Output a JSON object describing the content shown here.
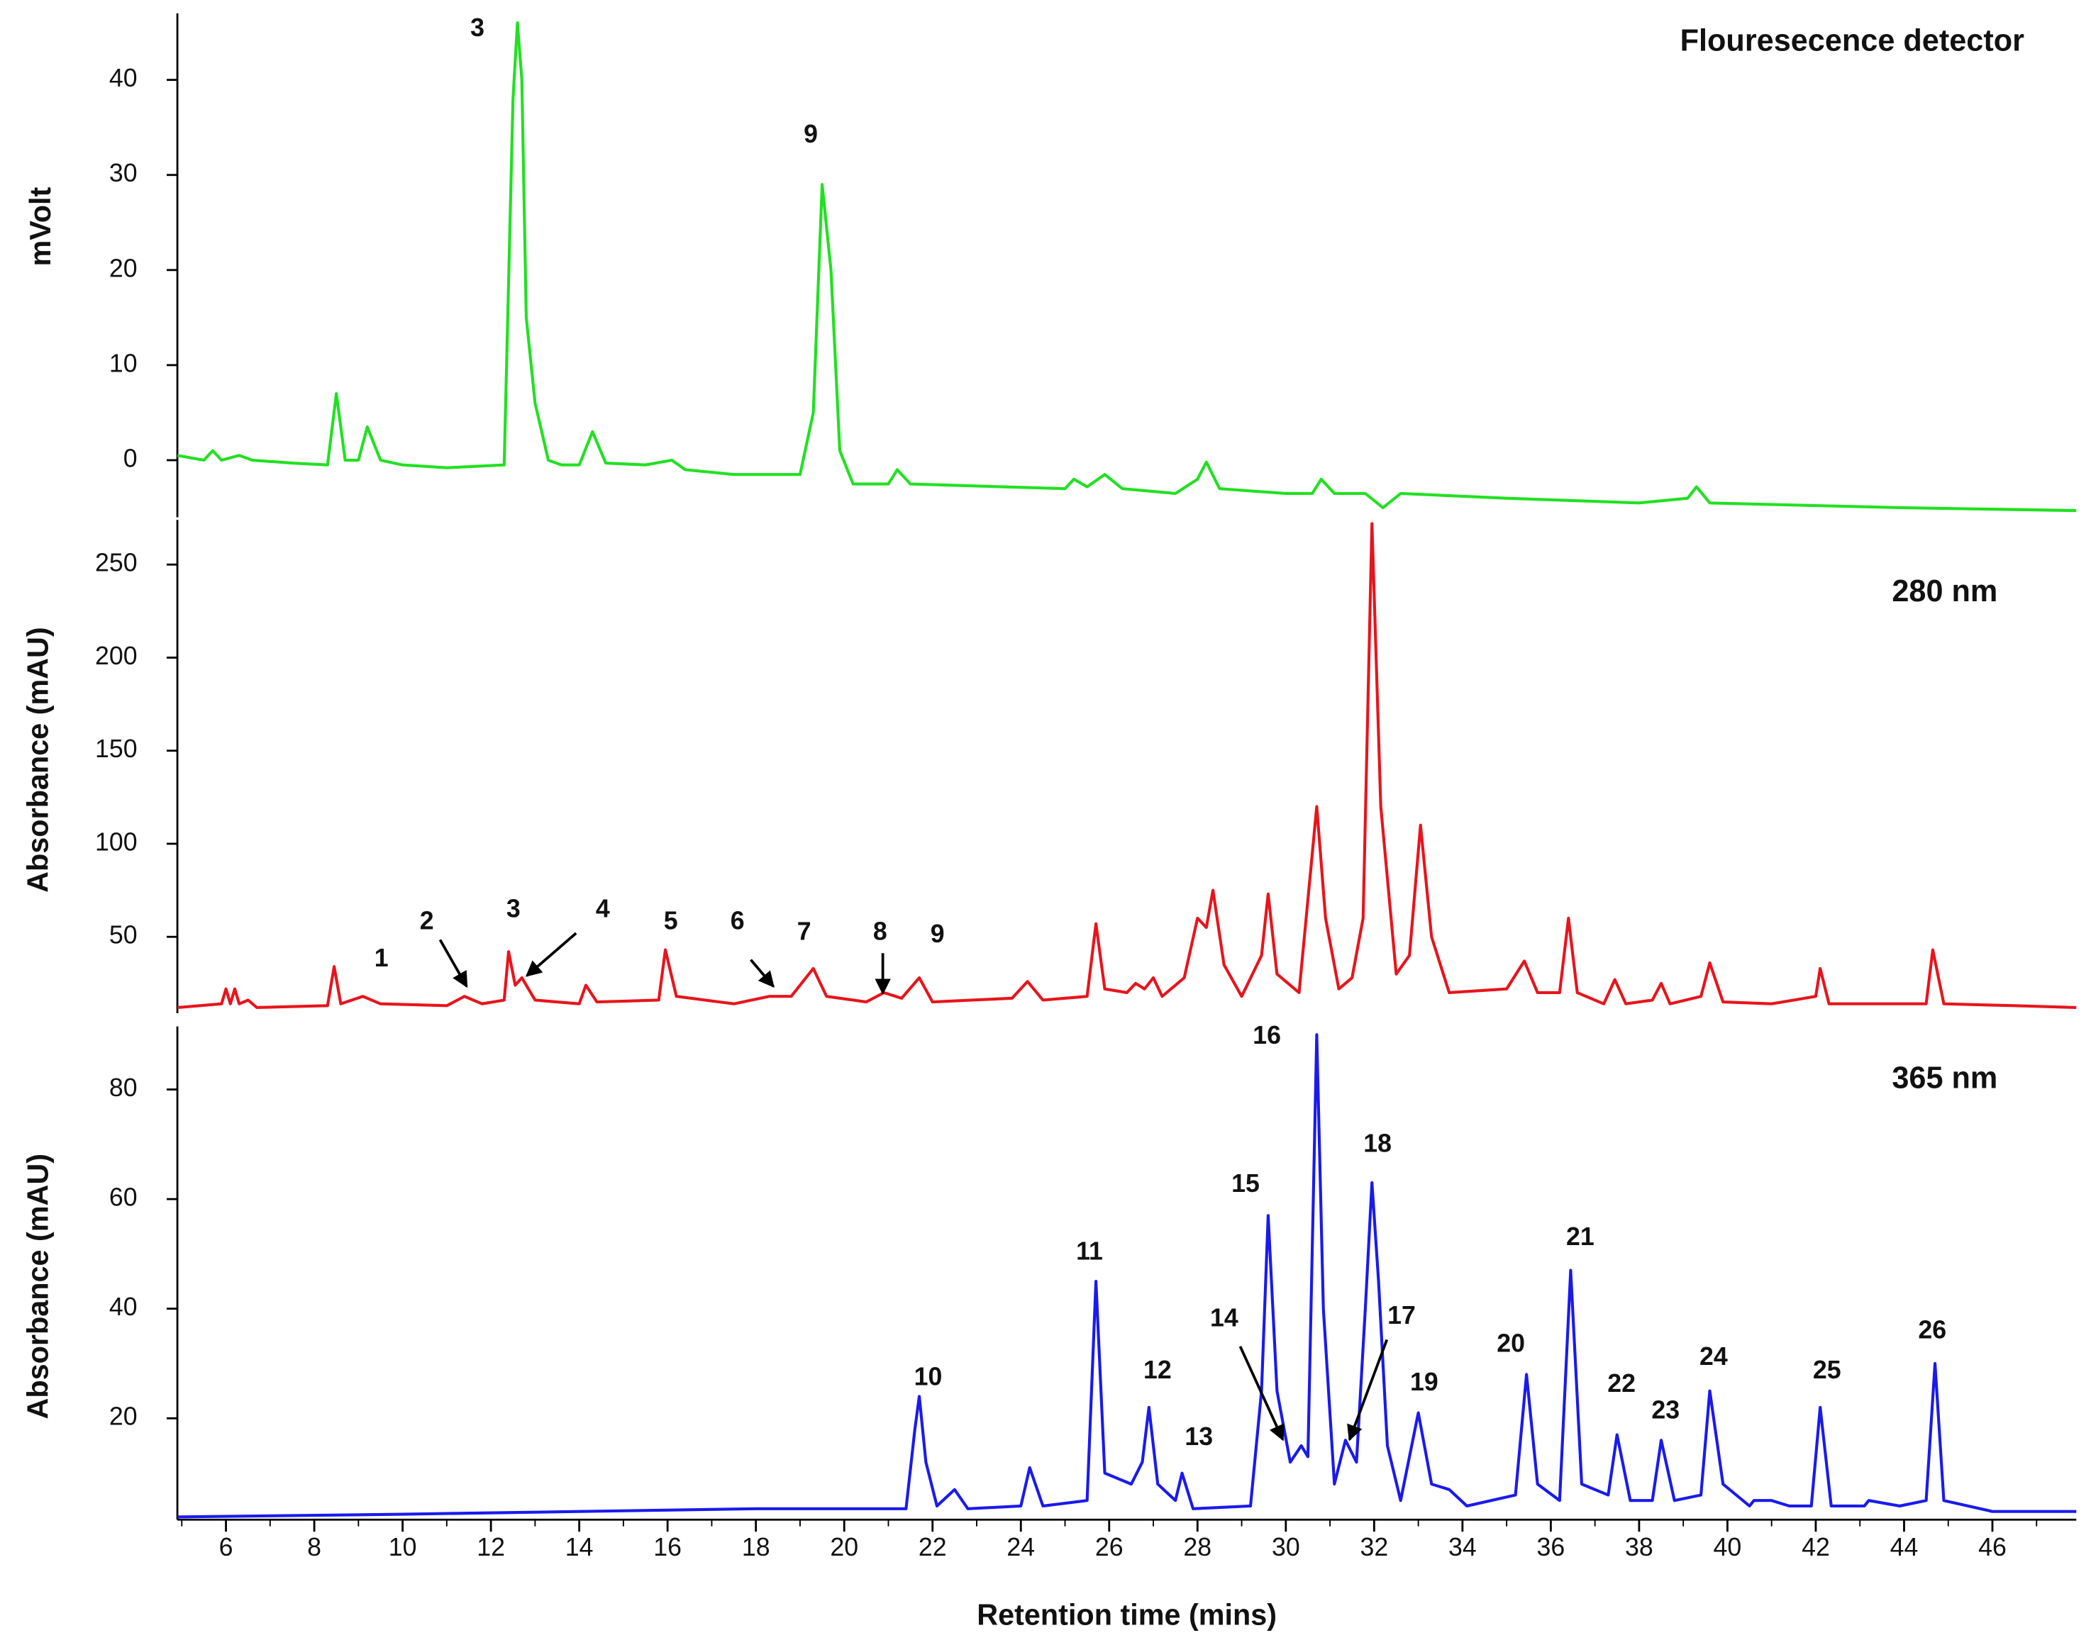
{
  "chart_data": [
    {
      "type": "line",
      "title": "Flouresecence detector",
      "ylabel": "mVolt",
      "color": "#22e022",
      "xlim": [
        4.9,
        47.9
      ],
      "ylim": [
        -6,
        47
      ],
      "yticks": [
        0,
        10,
        20,
        30,
        40
      ],
      "annotations": [
        "3",
        "9"
      ],
      "x": [
        4.9,
        5.5,
        5.7,
        5.9,
        6.3,
        6.6,
        7.5,
        8.3,
        8.5,
        8.7,
        9.0,
        9.2,
        9.5,
        10,
        11,
        12.3,
        12.5,
        12.6,
        12.7,
        12.8,
        13.0,
        13.3,
        13.6,
        14.0,
        14.3,
        14.6,
        15.5,
        16.1,
        16.4,
        17.5,
        19.0,
        19.3,
        19.5,
        19.7,
        19.9,
        20.2,
        21.0,
        21.2,
        21.5,
        25,
        25.2,
        25.5,
        25.9,
        26.3,
        27.5,
        28.0,
        28.2,
        28.5,
        30.0,
        30.6,
        30.8,
        31.1,
        31.8,
        32.2,
        32.6,
        35,
        38,
        39.1,
        39.3,
        39.6,
        44,
        47.9
      ],
      "values": [
        0.5,
        0,
        1,
        0,
        0.5,
        0,
        -0.3,
        -0.5,
        7,
        0,
        0,
        3.5,
        0,
        -0.5,
        -0.8,
        -0.5,
        38,
        46,
        40,
        15,
        6,
        0,
        -0.5,
        -0.5,
        3,
        -0.3,
        -0.5,
        0,
        -1,
        -1.5,
        -1.5,
        5,
        29,
        20,
        1,
        -2.5,
        -2.5,
        -1,
        -2.5,
        -3,
        -2,
        -2.8,
        -1.5,
        -3,
        -3.5,
        -2,
        -0.2,
        -3,
        -3.5,
        -3.5,
        -2,
        -3.5,
        -3.5,
        -5,
        -3.5,
        -4,
        -4.5,
        -4,
        -2.8,
        -4.5,
        -5,
        -5.3
      ]
    },
    {
      "type": "line",
      "title": "280 nm",
      "ylabel": "Absorbance (mAU)",
      "color": "#e8141c",
      "xlim": [
        4.9,
        47.9
      ],
      "ylim": [
        9,
        274
      ],
      "yticks": [
        50,
        100,
        150,
        200,
        250
      ],
      "annotations": [
        "1",
        "2",
        "3",
        "4",
        "5",
        "6",
        "7",
        "8",
        "9"
      ],
      "x": [
        4.9,
        5.9,
        6.0,
        6.1,
        6.2,
        6.3,
        6.5,
        6.7,
        8.3,
        8.45,
        8.6,
        9.1,
        9.5,
        11,
        11.4,
        11.8,
        12.3,
        12.4,
        12.55,
        12.7,
        13.0,
        14.0,
        14.15,
        14.4,
        15.8,
        15.95,
        16.2,
        17.5,
        18.3,
        18.8,
        19.3,
        19.6,
        20.5,
        20.9,
        21.3,
        21.7,
        22.0,
        23.8,
        24.15,
        24.5,
        25.5,
        25.7,
        25.9,
        26.4,
        26.6,
        26.8,
        27.0,
        27.2,
        27.7,
        28.0,
        28.2,
        28.35,
        28.6,
        29.0,
        29.45,
        29.6,
        29.8,
        30.3,
        30.7,
        30.9,
        31.2,
        31.5,
        31.75,
        31.95,
        32.15,
        32.5,
        32.8,
        33.05,
        33.3,
        33.7,
        35.0,
        35.4,
        35.7,
        36.2,
        36.4,
        36.6,
        37.2,
        37.45,
        37.7,
        38.3,
        38.5,
        38.7,
        39.4,
        39.6,
        39.9,
        41,
        42.0,
        42.1,
        42.3,
        44.5,
        44.65,
        44.9,
        46.5,
        47.9
      ],
      "values": [
        12,
        14,
        22,
        14,
        22,
        14,
        16,
        12,
        13,
        34,
        14,
        18,
        14,
        13,
        18,
        14,
        16,
        42,
        24,
        28,
        16,
        14,
        24,
        15,
        16,
        43,
        18,
        14,
        18,
        18,
        33,
        18,
        15,
        20,
        17,
        28,
        15,
        17,
        26,
        16,
        18,
        57,
        22,
        20,
        25,
        22,
        28,
        18,
        28,
        60,
        55,
        75,
        35,
        18,
        40,
        73,
        30,
        20,
        120,
        60,
        22,
        28,
        60,
        272,
        120,
        30,
        40,
        110,
        50,
        20,
        22,
        37,
        20,
        20,
        60,
        20,
        14,
        27,
        14,
        16,
        25,
        14,
        18,
        36,
        15,
        14,
        18,
        33,
        14,
        14,
        43,
        14,
        13,
        12
      ]
    },
    {
      "type": "line",
      "title": "365 nm",
      "ylabel": "Absorbance (mAU)",
      "xlabel": "Retention time (mins)",
      "color": "#1a1aee",
      "xlim": [
        4.9,
        47.9
      ],
      "ylim": [
        1.5,
        91.5
      ],
      "yticks": [
        20,
        40,
        60,
        80
      ],
      "xticks": [
        6,
        8,
        10,
        12,
        14,
        16,
        18,
        20,
        22,
        24,
        26,
        28,
        30,
        32,
        34,
        36,
        38,
        40,
        42,
        44,
        46
      ],
      "annotations": [
        "10",
        "11",
        "12",
        "13",
        "14",
        "15",
        "16",
        "17",
        "18",
        "19",
        "20",
        "21",
        "22",
        "23",
        "24",
        "25",
        "26"
      ],
      "x": [
        4.9,
        10,
        14,
        18,
        21.4,
        21.6,
        21.7,
        21.85,
        22.1,
        22.5,
        22.8,
        24.0,
        24.2,
        24.5,
        25.5,
        25.7,
        25.9,
        26.5,
        26.75,
        26.9,
        27.1,
        27.5,
        27.65,
        27.9,
        29.2,
        29.45,
        29.6,
        29.8,
        30.1,
        30.35,
        30.5,
        30.7,
        30.85,
        31.1,
        31.35,
        31.6,
        31.8,
        31.95,
        32.1,
        32.3,
        32.6,
        33.0,
        33.3,
        33.7,
        34.1,
        35.2,
        35.45,
        35.7,
        36.2,
        36.45,
        36.7,
        37.3,
        37.5,
        37.8,
        38.3,
        38.5,
        38.8,
        39.4,
        39.6,
        39.9,
        40.5,
        40.6,
        41.0,
        41.4,
        41.9,
        42.1,
        42.35,
        43.1,
        43.2,
        43.9,
        44.5,
        44.7,
        44.9,
        46,
        47.9
      ],
      "values": [
        2,
        2.5,
        3,
        3.5,
        3.5,
        18,
        24,
        12,
        4,
        7,
        3.5,
        4,
        11,
        4,
        5,
        45,
        10,
        8,
        12,
        22,
        8,
        5,
        10,
        3.5,
        4,
        25,
        57,
        25,
        12,
        15,
        13,
        90,
        40,
        8,
        16,
        12,
        40,
        63,
        45,
        15,
        5,
        21,
        8,
        7,
        4,
        6,
        28,
        8,
        5,
        47,
        8,
        6,
        17,
        5,
        5,
        16,
        5,
        6,
        25,
        8,
        4,
        5,
        5,
        4,
        4,
        22,
        4,
        4,
        5,
        4,
        5,
        30,
        5,
        3,
        3
      ]
    }
  ]
}
